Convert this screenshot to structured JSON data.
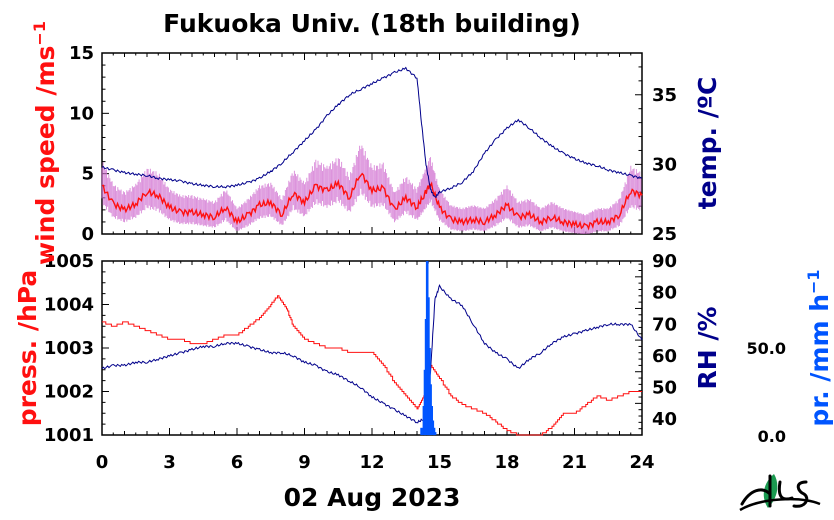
{
  "chart_data": {
    "type": "line",
    "title": "Fukuoka Univ. (18th building)",
    "date_label": "02 Aug 2023",
    "x_axis": {
      "range": [
        0,
        24
      ],
      "ticks": [
        "0",
        "3",
        "6",
        "9",
        "12",
        "15",
        "18",
        "21",
        "24"
      ]
    },
    "colors": {
      "red": "#ff1010",
      "pink": "#d070d0",
      "navy": "#00008b",
      "blue": "#0055ff",
      "logo_green": "#1a9a50"
    },
    "top_panel": {
      "left_axis": {
        "label": "wind speed /ms",
        "label_superscript": "−1",
        "range": [
          0,
          15
        ],
        "ticks": [
          "0",
          "5",
          "10",
          "15"
        ]
      },
      "right_axis": {
        "label": "temp. /ºC",
        "range": [
          25,
          38
        ],
        "ticks": [
          "25",
          "30",
          "35"
        ]
      },
      "series": [
        {
          "color": "red",
          "axis": "left",
          "x": [
            0,
            0.5,
            1,
            1.5,
            2,
            2.5,
            3,
            3.5,
            4,
            4.5,
            5,
            5.5,
            6,
            6.5,
            7,
            7.5,
            8,
            8.5,
            9,
            9.5,
            10,
            10.5,
            11,
            11.5,
            12,
            12.5,
            13,
            13.5,
            14,
            14.3,
            14.6,
            15,
            15.5,
            16,
            16.5,
            17,
            17.5,
            18,
            18.5,
            19,
            19.5,
            20,
            20.5,
            21,
            21.5,
            22,
            22.5,
            23,
            23.5,
            24
          ],
          "y": [
            4.0,
            2.5,
            2.0,
            2.5,
            3.5,
            3.2,
            2.2,
            1.8,
            1.8,
            1.6,
            1.4,
            2.2,
            1.0,
            1.6,
            2.4,
            2.6,
            1.6,
            3.4,
            2.6,
            4.0,
            3.6,
            4.2,
            3.0,
            5.1,
            3.6,
            3.8,
            2.0,
            3.0,
            2.2,
            3.2,
            4.2,
            2.2,
            1.2,
            1.0,
            1.2,
            1.0,
            1.6,
            2.4,
            1.4,
            1.6,
            1.0,
            1.4,
            1.0,
            0.8,
            0.6,
            1.0,
            1.0,
            1.6,
            3.6,
            3.2
          ]
        },
        {
          "color": "navy",
          "axis": "right",
          "x": [
            0,
            0.5,
            1,
            1.5,
            2,
            2.5,
            3,
            3.5,
            4,
            4.5,
            5,
            5.5,
            6,
            6.5,
            7,
            7.5,
            8,
            8.5,
            9,
            9.5,
            10,
            10.5,
            11,
            11.5,
            12,
            12.5,
            13,
            13.5,
            14,
            14.2,
            14.4,
            14.6,
            14.8,
            15,
            15.5,
            16,
            16.5,
            17,
            17.5,
            18,
            18.5,
            19,
            19.5,
            20,
            20.5,
            21,
            21.5,
            22,
            22.5,
            23,
            23.5,
            24
          ],
          "y": [
            29.8,
            29.6,
            29.4,
            29.3,
            29.2,
            29.0,
            28.9,
            28.8,
            28.6,
            28.5,
            28.4,
            28.4,
            28.5,
            28.7,
            29.0,
            29.5,
            30.1,
            30.9,
            31.7,
            32.5,
            33.5,
            34.3,
            35.0,
            35.4,
            35.8,
            36.2,
            36.6,
            36.9,
            36.2,
            33.0,
            30.0,
            28.2,
            27.6,
            28.0,
            28.3,
            28.7,
            29.5,
            30.8,
            31.8,
            32.6,
            33.2,
            32.6,
            31.9,
            31.3,
            30.8,
            30.4,
            30.1,
            29.9,
            29.6,
            29.4,
            29.2,
            29.0
          ]
        },
        {
          "color": "pink",
          "axis": "left",
          "note": ""
        }
      ]
    },
    "bottom_panel": {
      "left_axis": {
        "label": "press. /hPa",
        "range": [
          1001,
          1005
        ],
        "ticks": [
          "1001",
          "1002",
          "1003",
          "1004",
          "1005"
        ]
      },
      "right_axis": {
        "label": "RH /%",
        "range": [
          35,
          90
        ],
        "ticks": [
          "40",
          "50",
          "60",
          "70",
          "80",
          "90"
        ]
      },
      "far_right_axis": {
        "label": "pr. /mm h",
        "label_superscript": "−1",
        "ticks": [
          "0.0",
          "50.0"
        ]
      },
      "series": [
        {
          "color": "red",
          "axis": "left",
          "x": [
            0,
            0.5,
            1,
            1.5,
            2,
            2.5,
            3,
            3.5,
            4,
            4.5,
            5,
            5.5,
            6,
            6.5,
            7,
            7.5,
            7.8,
            8.2,
            8.5,
            9,
            9.5,
            10,
            10.5,
            11,
            11.5,
            12,
            12.5,
            13,
            13.5,
            14,
            14.3,
            14.6,
            15,
            15.5,
            16,
            16.5,
            17,
            17.5,
            18,
            18.5,
            19,
            19.5,
            20,
            20.5,
            21,
            21.5,
            22,
            22.5,
            23,
            23.5,
            24
          ],
          "y": [
            1003.6,
            1003.5,
            1003.6,
            1003.5,
            1003.4,
            1003.3,
            1003.2,
            1003.2,
            1003.1,
            1003.1,
            1003.2,
            1003.3,
            1003.3,
            1003.5,
            1003.7,
            1004.0,
            1004.2,
            1003.9,
            1003.5,
            1003.2,
            1003.1,
            1003.0,
            1003.0,
            1002.9,
            1002.9,
            1002.9,
            1002.6,
            1002.2,
            1001.9,
            1001.6,
            1001.9,
            1002.6,
            1002.3,
            1001.9,
            1001.7,
            1001.6,
            1001.5,
            1001.3,
            1001.1,
            1001.0,
            1001.0,
            1001.0,
            1001.2,
            1001.5,
            1001.5,
            1001.7,
            1001.9,
            1001.8,
            1001.9,
            1002.0,
            1002.0
          ]
        },
        {
          "color": "navy",
          "axis": "right",
          "x": [
            0,
            0.5,
            1,
            1.5,
            2,
            2.5,
            3,
            3.5,
            4,
            4.5,
            5,
            5.5,
            6,
            6.5,
            7,
            7.5,
            8,
            8.5,
            9,
            9.5,
            10,
            10.5,
            11,
            11.5,
            12,
            12.5,
            13,
            13.5,
            14,
            14.3,
            14.6,
            14.8,
            15,
            15.5,
            16,
            16.5,
            17,
            17.5,
            18,
            18.5,
            19,
            19.5,
            20,
            20.5,
            21,
            21.5,
            22,
            22.5,
            23,
            23.5,
            24
          ],
          "y": [
            56,
            57,
            57,
            58,
            58,
            59,
            60,
            61,
            62,
            63,
            63,
            64,
            64,
            63,
            62,
            61,
            61,
            60,
            58,
            57,
            55,
            54,
            52,
            50,
            47,
            45,
            43,
            41,
            39,
            40,
            55,
            78,
            82,
            78,
            76,
            70,
            64,
            61,
            59,
            56,
            59,
            61,
            64,
            66,
            67,
            68,
            69,
            70,
            70,
            70,
            65
          ]
        },
        {
          "color": "blue",
          "axis": "far_right",
          "x": [
            14.2,
            14.3,
            14.35,
            14.4,
            14.45,
            14.5,
            14.55,
            14.6,
            14.65,
            14.7,
            14.75,
            14.8
          ],
          "y": [
            5,
            20,
            45,
            80,
            120,
            95,
            60,
            35,
            20,
            10,
            5,
            2
          ]
        }
      ]
    },
    "logo": "ILES"
  }
}
